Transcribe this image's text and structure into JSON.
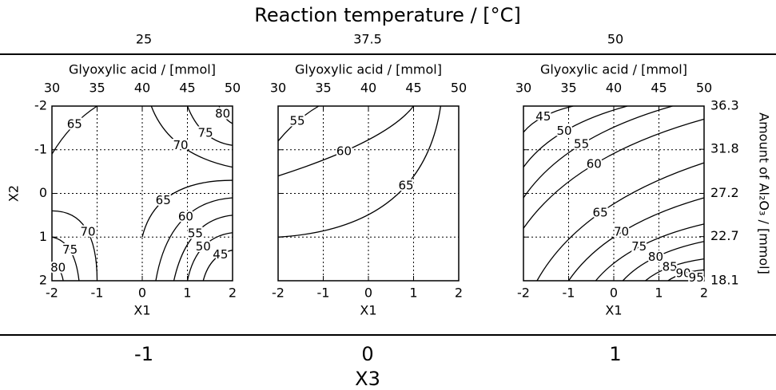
{
  "title": "Reaction temperature / [°C]",
  "x3_label": "X3",
  "chart_data": [
    {
      "type": "contour",
      "temperature": 25,
      "x3": -1,
      "x2label": "Glyoxylic acid / [mmol]",
      "xlabel": "X1",
      "ylabel": "X2",
      "xlim": [
        -2,
        2
      ],
      "xticks": [
        -2,
        -1,
        0,
        1,
        2
      ],
      "ylim": [
        2,
        -2
      ],
      "yticks": [
        -2,
        -1,
        0,
        1,
        2
      ],
      "x2lim": [
        30,
        50
      ],
      "x2ticks": [
        30,
        35,
        40,
        45,
        50
      ],
      "levels": [
        65,
        70,
        75,
        80,
        65,
        60,
        55,
        50,
        45,
        70,
        75,
        80
      ],
      "grid": true,
      "color": "#000000"
    },
    {
      "type": "contour",
      "temperature": 37.5,
      "x3": 0,
      "x2label": "Glyoxylic acid / [mmol]",
      "xlabel": "X1",
      "xlim": [
        -2,
        2
      ],
      "xticks": [
        -2,
        -1,
        0,
        1,
        2
      ],
      "ylim": [
        2,
        -2
      ],
      "yticks": [
        -2,
        -1,
        0,
        1,
        2
      ],
      "x2lim": [
        30,
        50
      ],
      "x2ticks": [
        30,
        35,
        40,
        45,
        50
      ],
      "levels": [
        55,
        60,
        65
      ],
      "grid": true,
      "color": "#000000"
    },
    {
      "type": "contour",
      "temperature": 50,
      "x3": 1,
      "x2label": "Glyoxylic acid / [mmol]",
      "xlabel": "X1",
      "y2label": "Amount of Al₂O₃ / [mmol]",
      "xlim": [
        -2,
        2
      ],
      "xticks": [
        -2,
        -1,
        0,
        1,
        2
      ],
      "ylim": [
        2,
        -2
      ],
      "yticks": [
        -2,
        -1,
        0,
        1,
        2
      ],
      "x2lim": [
        30,
        50
      ],
      "x2ticks": [
        30,
        35,
        40,
        45,
        50
      ],
      "y2lim": [
        18.1,
        36.3
      ],
      "y2ticks": [
        36.3,
        31.8,
        27.2,
        22.7,
        18.1
      ],
      "levels": [
        45,
        50,
        55,
        60,
        65,
        70,
        75,
        80,
        85,
        90,
        95
      ],
      "grid": true,
      "color": "#000000"
    }
  ]
}
